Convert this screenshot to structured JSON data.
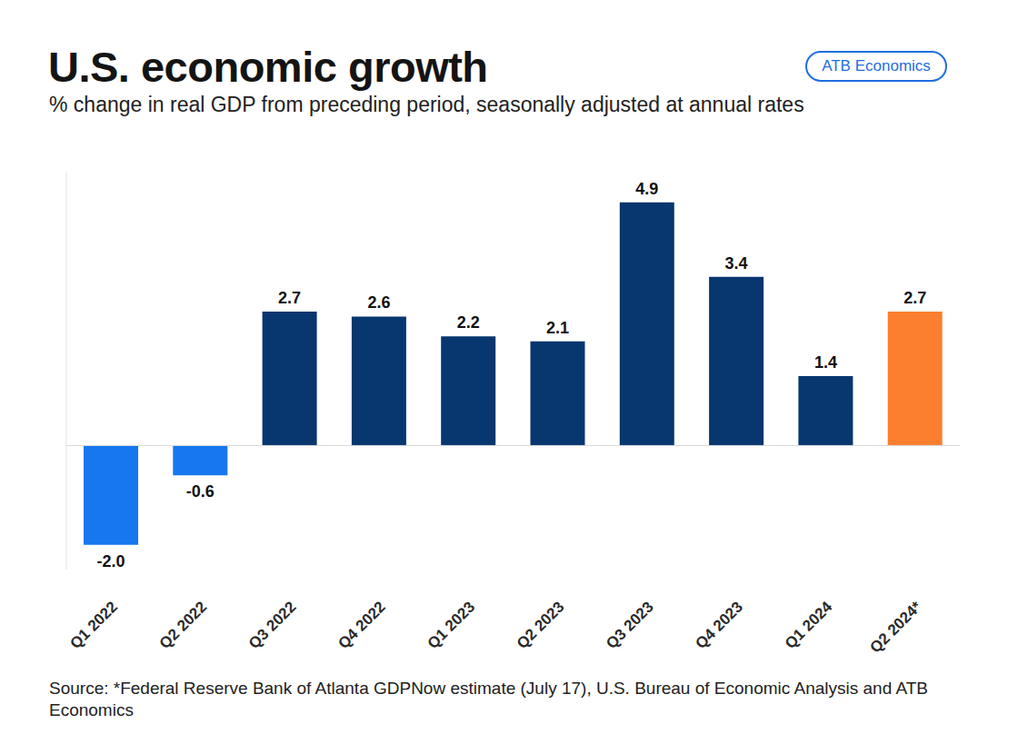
{
  "chart_data": {
    "type": "bar",
    "title": "U.S. economic growth",
    "subtitle": "% change in real GDP from preceding period, seasonally adjusted at annual rates",
    "badge": "ATB Economics",
    "source": "Source: *Federal Reserve Bank of Atlanta GDPNow estimate (July 17), U.S. Bureau of Economic Analysis and ATB Economics",
    "categories": [
      "Q1 2022",
      "Q2 2022",
      "Q3 2022",
      "Q4 2022",
      "Q1 2023",
      "Q2 2023",
      "Q3 2023",
      "Q4 2023",
      "Q1 2024",
      "Q2 2024*"
    ],
    "values": [
      -2.0,
      -0.6,
      2.7,
      2.6,
      2.2,
      2.1,
      4.9,
      3.4,
      1.4,
      2.7
    ],
    "colors": [
      "#1677ee",
      "#1677ee",
      "#08366f",
      "#08366f",
      "#08366f",
      "#08366f",
      "#08366f",
      "#08366f",
      "#08366f",
      "#fb7f2e"
    ],
    "ylim": [
      -2.5,
      5.5
    ],
    "data_labels": true,
    "tick_labels": "x",
    "grid": false
  }
}
